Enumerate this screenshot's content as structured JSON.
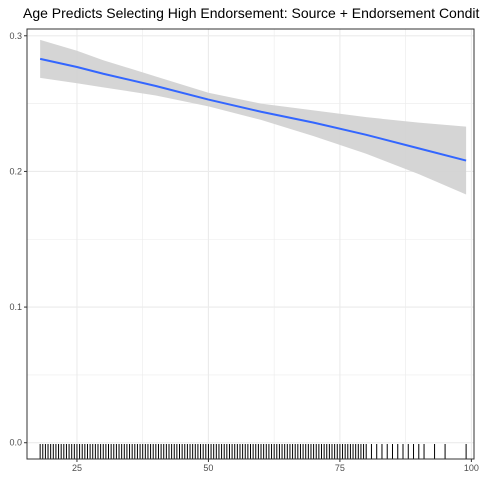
{
  "chart_data": {
    "type": "line",
    "title": "Age Predicts Selecting High Endorsement: Source + Endorsement Condition",
    "xlabel": "",
    "ylabel": "",
    "xlim": [
      15.5,
      100.5
    ],
    "ylim": [
      -0.012,
      0.305
    ],
    "x_ticks": [
      25,
      50,
      75,
      100
    ],
    "y_ticks": [
      0.0,
      0.1,
      0.2,
      0.3
    ],
    "x_tick_labels": [
      "25",
      "50",
      "75",
      "100"
    ],
    "y_tick_labels": [
      "0.0",
      "0.1",
      "0.2",
      "0.3"
    ],
    "grid": true,
    "theme": "black-and-white panel with light gray major and minor grid",
    "colors": {
      "line": "#3366ff",
      "ribbon": "#d3d3d3",
      "rug": "#000000",
      "grid": "#ebebeb",
      "border": "#333333"
    },
    "series": [
      {
        "type": "smooth-fit",
        "x": [
          18,
          25,
          30,
          40,
          50,
          60,
          70,
          80,
          90,
          99
        ],
        "y": [
          0.283,
          0.277,
          0.272,
          0.263,
          0.253,
          0.244,
          0.236,
          0.227,
          0.217,
          0.208
        ],
        "y_low": [
          0.269,
          0.265,
          0.262,
          0.256,
          0.248,
          0.238,
          0.226,
          0.213,
          0.198,
          0.183
        ],
        "y_high": [
          0.297,
          0.289,
          0.282,
          0.27,
          0.258,
          0.25,
          0.245,
          0.24,
          0.236,
          0.233
        ]
      }
    ],
    "rug": {
      "y": 0,
      "x": [
        18,
        18.5,
        19,
        19.5,
        20,
        20.5,
        21,
        21.5,
        22,
        22.5,
        23,
        23.5,
        24,
        24.5,
        25,
        25.5,
        26,
        26.5,
        27,
        27.5,
        28,
        28.5,
        29,
        29.5,
        30,
        30.5,
        31,
        31.5,
        32,
        32.5,
        33,
        33.5,
        34,
        34.5,
        35,
        35.5,
        36,
        36.5,
        37,
        37.5,
        38,
        38.5,
        39,
        39.5,
        40,
        40.5,
        41,
        41.5,
        42,
        42.5,
        43,
        43.5,
        44,
        44.5,
        45,
        45.5,
        46,
        46.5,
        47,
        47.5,
        48,
        48.5,
        49,
        49.5,
        50,
        50.5,
        51,
        51.5,
        52,
        52.5,
        53,
        53.5,
        54,
        54.5,
        55,
        55.5,
        56,
        56.5,
        57,
        57.5,
        58,
        58.5,
        59,
        59.5,
        60,
        60.5,
        61,
        61.5,
        62,
        62.5,
        63,
        63.5,
        64,
        64.5,
        65,
        65.5,
        66,
        66.5,
        67,
        67.5,
        68,
        68.5,
        69,
        69.5,
        70,
        70.5,
        71,
        71.5,
        72,
        72.5,
        73,
        73.5,
        74,
        74.5,
        75,
        75.5,
        76,
        76.5,
        77,
        77.5,
        78,
        78.5,
        79,
        79.5,
        80,
        81,
        82,
        83,
        84,
        85,
        86,
        87,
        88,
        89,
        90,
        91,
        93,
        95,
        99
      ]
    }
  }
}
